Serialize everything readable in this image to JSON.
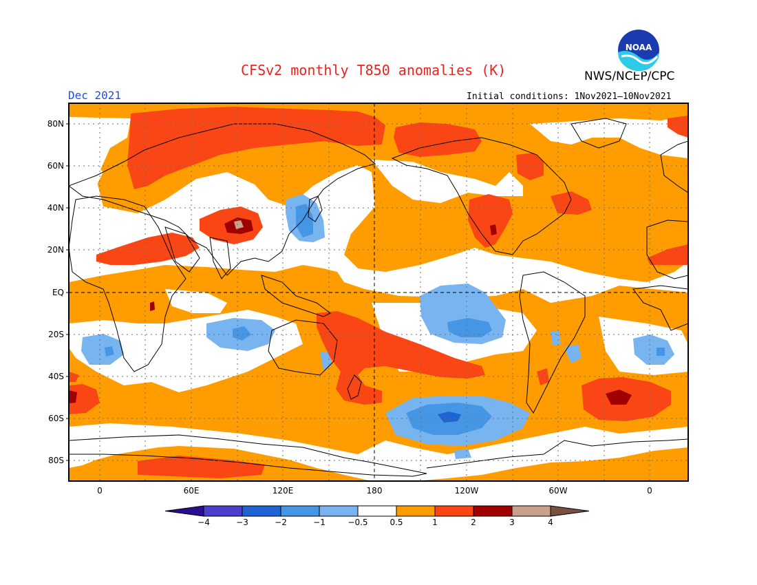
{
  "header": {
    "title": "CFSv2 monthly T850 anomalies (K)",
    "agency": "NWS/NCEP/CPC",
    "month": "Dec 2021",
    "initial_conditions": "Initial conditions: 1Nov2021–10Nov2021"
  },
  "logo": {
    "icon": "noaa-logo-icon",
    "text": "NOAA"
  },
  "map": {
    "projection": "equirectangular",
    "center_longitude": "180",
    "lat_labels": [
      "80N",
      "60N",
      "40N",
      "20N",
      "EQ",
      "20S",
      "40S",
      "60S",
      "80S"
    ],
    "lon_labels": [
      "0",
      "60E",
      "120E",
      "180",
      "120W",
      "60W",
      "0"
    ],
    "grid": "dotted"
  },
  "colorbar": {
    "labels": [
      "−4",
      "−3",
      "−2",
      "−1",
      "−0.5",
      "0.5",
      "1",
      "2",
      "3",
      "4"
    ],
    "colors": [
      "#2a0e8f",
      "#4a3fc8",
      "#1e64d2",
      "#4696e6",
      "#78b4f0",
      "#ffffff",
      "#ff9d00",
      "#fa4614",
      "#a00000",
      "#c8a08c",
      "#7a5040"
    ]
  }
}
